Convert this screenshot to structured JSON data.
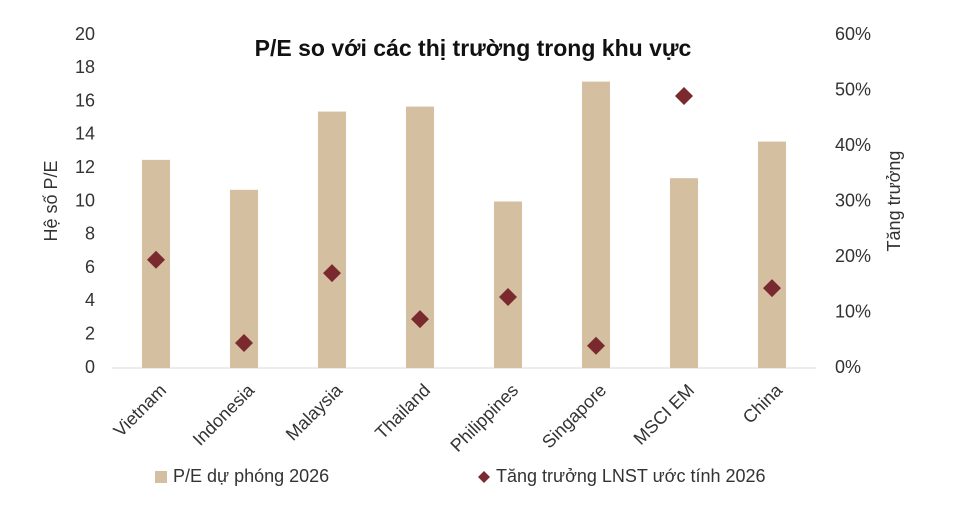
{
  "chart_data": {
    "type": "bar",
    "title": "P/E so với các thị trường trong khu vực",
    "y_label": "Hệ số P/E",
    "y2_label": "Tăng trưởng",
    "categories": [
      "Vietnam",
      "Indonesia",
      "Malaysia",
      "Thailand",
      "Philippines",
      "Singapore",
      "MSCI EM",
      "China"
    ],
    "series": [
      {
        "name": "P/E dự phóng 2026",
        "type": "bar",
        "color": "#d4bfa0",
        "axis": "y",
        "values": [
          12.5,
          10.7,
          15.4,
          15.7,
          10.0,
          17.2,
          11.4,
          13.6
        ]
      },
      {
        "name": "Tăng trưởng LNST ước tính 2026",
        "type": "scatter",
        "color": "#7a2a2e",
        "axis": "y2",
        "values": [
          19.5,
          4.5,
          17.1,
          8.8,
          12.8,
          4.0,
          49.0,
          14.4
        ]
      }
    ],
    "ylim": [
      0,
      20
    ],
    "yticks": [
      0,
      2,
      4,
      6,
      8,
      10,
      12,
      14,
      16,
      18,
      20
    ],
    "y2lim": [
      0,
      60
    ],
    "y2ticks": [
      {
        "value": 0,
        "label": "0%"
      },
      {
        "value": 10,
        "label": "10%"
      },
      {
        "value": 20,
        "label": "20%"
      },
      {
        "value": 30,
        "label": "30%"
      },
      {
        "value": 40,
        "label": "40%"
      },
      {
        "value": 50,
        "label": "50%"
      },
      {
        "value": 60,
        "label": "60%"
      }
    ],
    "grid": false,
    "legend": "bottom"
  }
}
